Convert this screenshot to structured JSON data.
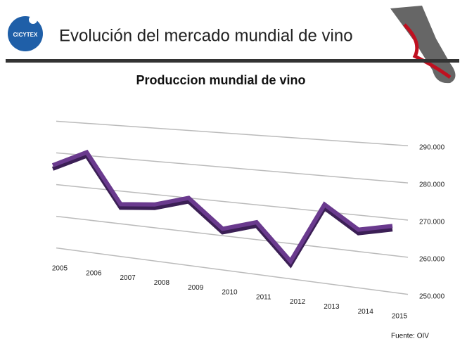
{
  "header": {
    "logo": "CICYTEX",
    "title": "Evolución del mercado mundial de vino"
  },
  "chart_data": {
    "type": "line",
    "title": "Produccion mundial de vino",
    "categories": [
      "2005",
      "2006",
      "2007",
      "2008",
      "2009",
      "2010",
      "2011",
      "2012",
      "2013",
      "2014",
      "2015"
    ],
    "series": [
      {
        "name": "Produccion",
        "color": "#6a3a8e",
        "values": [
          276000,
          281000,
          266000,
          267000,
          270000,
          262000,
          265000,
          255000,
          272000,
          266000,
          268000
        ]
      }
    ],
    "ylim": [
      250000,
      290000
    ],
    "yticks": [
      {
        "value": 250000,
        "label": "250.000"
      },
      {
        "value": 260000,
        "label": "260.000"
      },
      {
        "value": 270000,
        "label": "270.000"
      },
      {
        "value": 280000,
        "label": "280.000"
      },
      {
        "value": 290000,
        "label": "290.000"
      }
    ],
    "grid": true
  },
  "source": "Fuente: OIV"
}
